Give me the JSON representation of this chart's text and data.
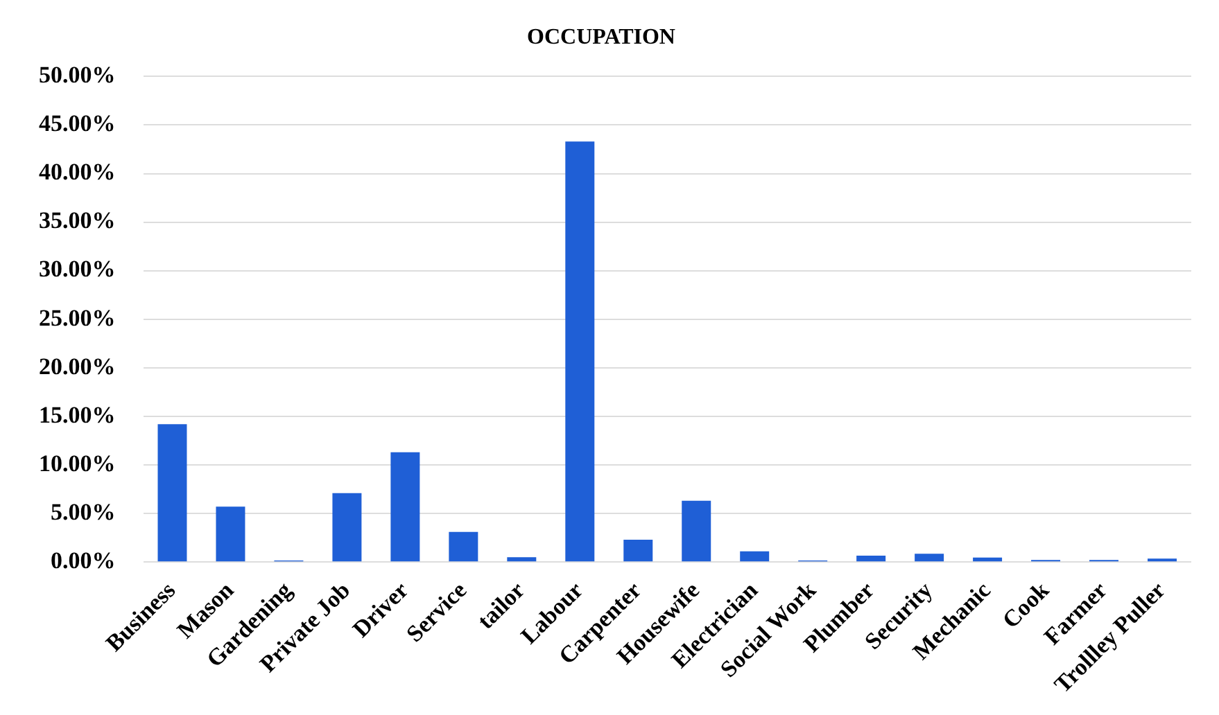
{
  "chart_data": {
    "type": "bar",
    "title": "OCCUPATION",
    "categories": [
      "Business",
      "Mason",
      "Gardening",
      "Private Job",
      "Driver",
      "Service",
      "tailor",
      "Labour",
      "Carpenter",
      "Housewife",
      "Electrician",
      "Social Work",
      "Plumber",
      "Security",
      "Mechanic",
      "Cook",
      "Farmer",
      "Trollley Puller"
    ],
    "values": [
      14.2,
      5.7,
      0.15,
      7.1,
      11.3,
      3.1,
      0.5,
      43.3,
      2.3,
      6.3,
      1.1,
      0.15,
      0.65,
      0.85,
      0.45,
      0.2,
      0.2,
      0.35
    ],
    "color": "#1f5fd6",
    "ylim": [
      0,
      50
    ],
    "yticks": [
      {
        "value": 0,
        "label": "0.00%"
      },
      {
        "value": 5,
        "label": "5.00%"
      },
      {
        "value": 10,
        "label": "10.00%"
      },
      {
        "value": 15,
        "label": "15.00%"
      },
      {
        "value": 20,
        "label": "20.00%"
      },
      {
        "value": 25,
        "label": "25.00%"
      },
      {
        "value": 30,
        "label": "30.00%"
      },
      {
        "value": 35,
        "label": "35.00%"
      },
      {
        "value": 40,
        "label": "40.00%"
      },
      {
        "value": 45,
        "label": "45.00%"
      },
      {
        "value": 50,
        "label": "50.00%"
      }
    ],
    "grid": "y"
  }
}
